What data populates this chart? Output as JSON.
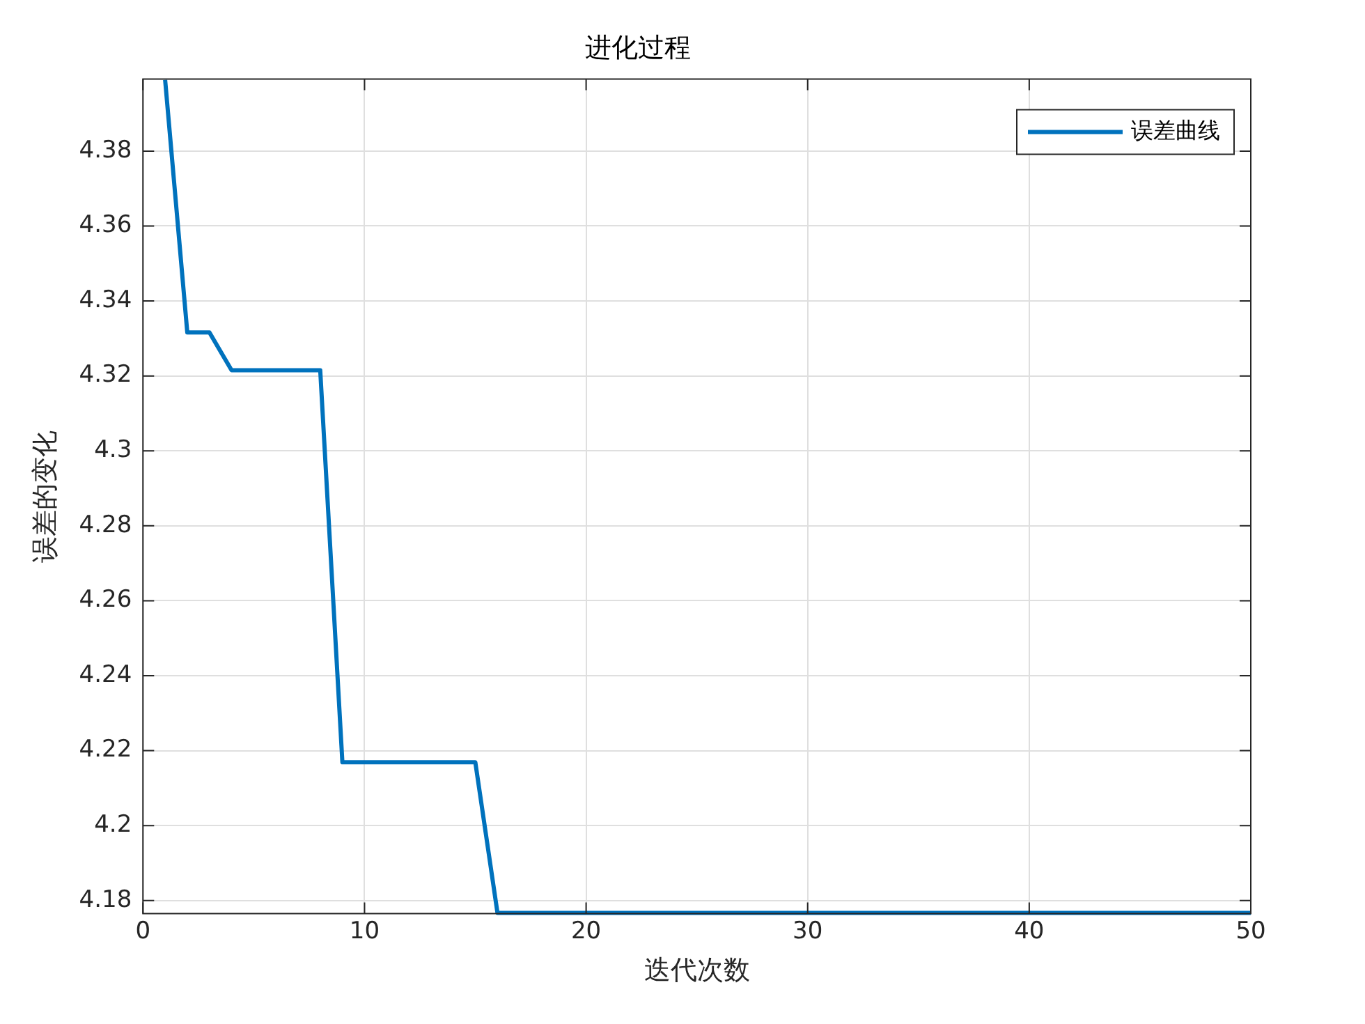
{
  "chart_data": {
    "type": "line",
    "title": "进化过程",
    "xlabel": "迭代次数",
    "ylabel": "误差的变化",
    "x": [
      1,
      2,
      3,
      4,
      5,
      6,
      7,
      8,
      9,
      10,
      11,
      12,
      13,
      14,
      15,
      16,
      17,
      18,
      19,
      20,
      21,
      22,
      23,
      24,
      25,
      26,
      27,
      28,
      29,
      30,
      31,
      32,
      33,
      34,
      35,
      36,
      37,
      38,
      39,
      40,
      41,
      42,
      43,
      44,
      45,
      46,
      47,
      48,
      49,
      50
    ],
    "series": [
      {
        "name": "误差曲线",
        "color": "#0072bd",
        "values": [
          4.399,
          4.3316,
          4.3316,
          4.3215,
          4.3215,
          4.3215,
          4.3215,
          4.3215,
          4.2169,
          4.2169,
          4.2169,
          4.2169,
          4.2169,
          4.2169,
          4.2169,
          4.1767,
          4.1767,
          4.1767,
          4.1767,
          4.1767,
          4.1767,
          4.1767,
          4.1767,
          4.1767,
          4.1767,
          4.1767,
          4.1767,
          4.1767,
          4.1767,
          4.1767,
          4.1767,
          4.1767,
          4.1767,
          4.1767,
          4.1767,
          4.1767,
          4.1767,
          4.1767,
          4.1767,
          4.1767,
          4.1767,
          4.1767,
          4.1767,
          4.1767,
          4.1767,
          4.1767,
          4.1767,
          4.1767,
          4.1767,
          4.1767
        ]
      }
    ],
    "xlim": [
      0,
      50
    ],
    "xticks": [
      0,
      10,
      20,
      30,
      40,
      50
    ],
    "ylim": [
      4.1765,
      4.3992
    ],
    "yticks": [
      4.18,
      4.2,
      4.22,
      4.24,
      4.26,
      4.28,
      4.3,
      4.32,
      4.34,
      4.36,
      4.38
    ],
    "grid": true,
    "legend": "top right",
    "marker": "none",
    "line_style": "solid"
  }
}
